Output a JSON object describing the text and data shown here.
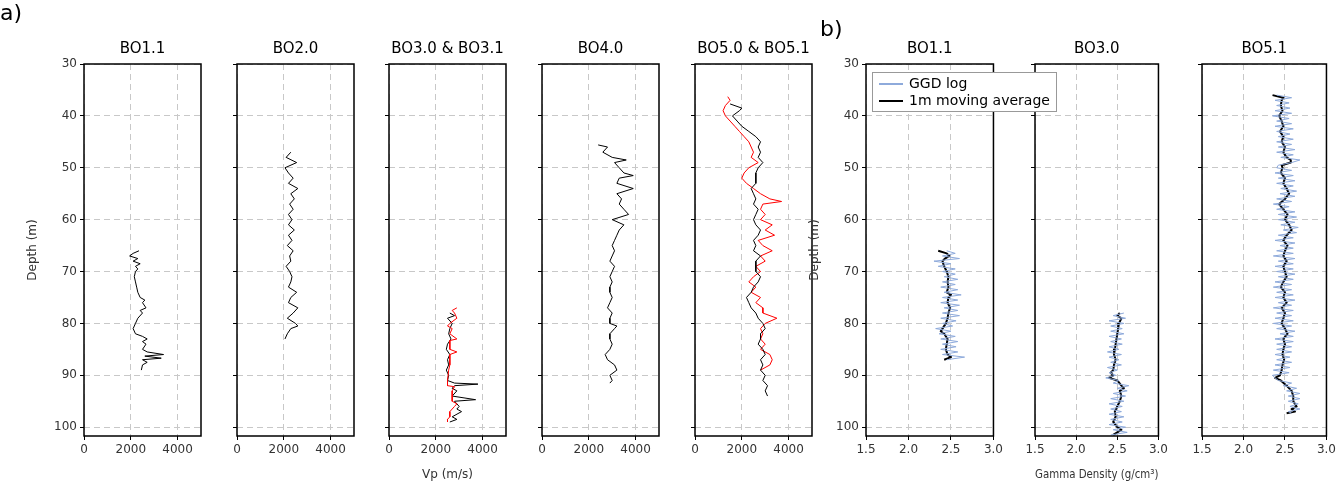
{
  "chart_data": [
    {
      "type": "line",
      "title": "BO1.1",
      "ylabel": "Depth (m)",
      "annotations": [
        "a)"
      ],
      "xlim": [
        0,
        5000
      ],
      "xticks": [
        0,
        2000,
        4000
      ],
      "ylim": [
        101.7,
        30
      ],
      "yticks": [
        30,
        40,
        50,
        60,
        70,
        80,
        90,
        100
      ],
      "grid": true,
      "series": [
        {
          "color": "#000000",
          "x": [
            2350,
            2100,
            1950,
            2300,
            2100,
            2400,
            2200,
            2300,
            2200,
            2150,
            2200,
            2250,
            2300,
            2400,
            2600,
            2500,
            2650,
            2400,
            2500,
            2300,
            2200,
            2100,
            2200,
            2500,
            2700,
            2500,
            2650,
            2500,
            2700,
            3400,
            2600,
            3300,
            2500,
            2700,
            2500,
            2450
          ],
          "values": [
            66,
            66.5,
            67,
            67.5,
            68,
            68.5,
            69,
            69.5,
            70,
            71,
            72,
            73,
            74,
            75,
            75.5,
            76,
            77,
            77.5,
            78,
            79,
            80,
            81,
            82,
            82.5,
            83,
            83.5,
            84,
            85,
            85.5,
            86,
            86.3,
            86.7,
            87,
            87.5,
            88,
            89
          ]
        }
      ]
    },
    {
      "type": "line",
      "title": "BO2.0",
      "tick_labels": "x",
      "xlim": [
        0,
        5000
      ],
      "xticks": [
        0,
        2000,
        4000
      ],
      "ylim": [
        101.7,
        30
      ],
      "yticks": [
        30,
        40,
        50,
        60,
        70,
        80,
        90,
        100
      ],
      "grid": true,
      "series": [
        {
          "color": "#000000",
          "x": [
            2300,
            2100,
            2550,
            2050,
            2200,
            2400,
            2200,
            2600,
            2300,
            2450,
            2250,
            2400,
            2200,
            2350,
            2200,
            2450,
            2200,
            2350,
            2150,
            2400,
            2250,
            2300,
            2100,
            2250,
            2350,
            2300,
            2200,
            2550,
            2300,
            2200,
            2600,
            2400,
            2150,
            2500,
            2600,
            2300,
            2150,
            2050
          ],
          "values": [
            47,
            48,
            49,
            50,
            51,
            52,
            53,
            54,
            55,
            56,
            57,
            58,
            59,
            60,
            61,
            62,
            63,
            64,
            65,
            66,
            67,
            68,
            69,
            70,
            71,
            72,
            73,
            74,
            75,
            76,
            77,
            78,
            79,
            80,
            80.5,
            81,
            82,
            83
          ]
        }
      ]
    },
    {
      "type": "line",
      "title": "BO3.0 & BO3.1",
      "xlabel": "Vp (m/s)",
      "tick_labels": "x",
      "xlim": [
        0,
        5000
      ],
      "xticks": [
        0,
        2000,
        4000
      ],
      "ylim": [
        101.7,
        30
      ],
      "yticks": [
        30,
        40,
        50,
        60,
        70,
        80,
        90,
        100
      ],
      "grid": true,
      "series": [
        {
          "color": "#ff0000",
          "x": [
            2900,
            2700,
            2800,
            2900,
            2600,
            2500,
            2700,
            2600,
            2900,
            2600,
            2600,
            2900,
            2600,
            2600,
            2550,
            2500,
            2500,
            2800,
            2700,
            2700,
            2900,
            2800,
            2600,
            2600,
            2500,
            2500
          ],
          "values": [
            77,
            77.5,
            78,
            79,
            80,
            80.5,
            81,
            82,
            83,
            83.3,
            85,
            85.5,
            86,
            88,
            89,
            91,
            92,
            92.2,
            93,
            95,
            95.5,
            96,
            97,
            98,
            98.5,
            99
          ]
        },
        {
          "color": "#000000",
          "x": [
            2600,
            2800,
            2500,
            2700,
            2600,
            2550,
            2650,
            2500,
            2450,
            2600,
            2500,
            2550,
            2450,
            2550,
            2500,
            2800,
            3800,
            2800,
            2700,
            2900,
            2700,
            3700,
            2800,
            3000,
            2900,
            3100,
            2700,
            2900,
            2600
          ],
          "values": [
            78,
            78.5,
            79,
            80,
            81,
            82,
            83,
            84,
            85,
            86,
            87,
            88,
            89,
            90,
            91,
            91.5,
            91.7,
            92,
            92.5,
            93,
            94,
            94.7,
            95,
            96,
            96.5,
            97,
            98,
            98.5,
            99
          ]
        }
      ]
    },
    {
      "type": "line",
      "title": "BO4.0",
      "tick_labels": "x",
      "xlim": [
        0,
        5000
      ],
      "xticks": [
        0,
        2000,
        4000
      ],
      "ylim": [
        101.7,
        30
      ],
      "yticks": [
        30,
        40,
        50,
        60,
        70,
        80,
        90,
        100
      ],
      "grid": true,
      "series": [
        {
          "color": "#000000",
          "x": [
            2400,
            2800,
            2600,
            3000,
            3600,
            3100,
            3300,
            3500,
            3900,
            3300,
            3200,
            3900,
            3200,
            3400,
            3300,
            3500,
            3700,
            3000,
            3500,
            3300,
            3200,
            3100,
            3000,
            3100,
            3000,
            2900,
            3100,
            3000,
            2900,
            3000,
            2900,
            2900,
            3000,
            2900,
            2800,
            3000,
            2900,
            2900,
            3200,
            3100,
            2900,
            2900,
            3000,
            2900,
            2700,
            2800,
            3100,
            3200,
            2900,
            3000,
            2900
          ],
          "values": [
            45.6,
            46,
            47,
            48,
            48.5,
            49,
            50,
            51,
            51.5,
            52,
            53,
            54,
            55,
            56,
            57,
            58,
            59,
            60,
            61,
            62,
            63,
            64,
            65,
            66,
            67,
            68,
            69,
            70,
            71,
            72,
            73,
            74,
            75,
            76,
            77,
            78,
            79,
            80,
            80.5,
            81,
            82,
            83,
            84,
            85,
            86,
            87,
            88,
            89,
            90,
            91,
            91.5
          ]
        }
      ]
    },
    {
      "type": "line",
      "title": "BO5.0 & BO5.1",
      "tick_labels": "x",
      "xlim": [
        0,
        5000
      ],
      "xticks": [
        0,
        2000,
        4000
      ],
      "ylim": [
        101.7,
        30
      ],
      "yticks": [
        30,
        40,
        50,
        60,
        70,
        80,
        90,
        100
      ],
      "grid": true,
      "series": [
        {
          "color": "#000000",
          "x": [
            1500,
            2000,
            1900,
            1600,
            1800,
            2000,
            2300,
            2600,
            2800,
            2700,
            2800,
            2700,
            2900,
            2700,
            2600,
            2600,
            2400,
            2500,
            2600,
            2500,
            2700,
            2600,
            2500,
            2600,
            2800,
            2700,
            2500,
            2600,
            2500,
            2800,
            2600,
            2600,
            2800,
            2700,
            2500,
            2400,
            2200,
            2300,
            2400,
            2600,
            2700,
            2900,
            3000,
            2800,
            2800,
            2700,
            2900,
            3000,
            2800,
            2900,
            2800,
            3000,
            2900,
            3100,
            3000,
            3100
          ],
          "values": [
            37.7,
            38.5,
            39,
            40,
            41,
            42,
            43,
            44,
            45,
            46,
            47,
            48,
            49,
            50,
            51,
            53,
            54,
            55,
            56,
            57,
            58,
            59,
            60,
            61,
            62,
            63,
            64,
            65,
            66,
            67,
            68,
            70,
            71,
            72,
            73,
            74,
            75,
            76,
            77,
            78,
            79,
            80,
            81,
            82,
            83,
            84,
            85,
            86,
            87,
            88,
            89,
            90,
            91,
            92,
            93,
            94
          ]
        },
        {
          "color": "#ff0000",
          "x": [
            1400,
            1500,
            1300,
            1200,
            1300,
            1500,
            1700,
            1900,
            2100,
            2300,
            2400,
            2500,
            2400,
            2700,
            2300,
            2100,
            2000,
            2200,
            2500,
            2800,
            3200,
            3700,
            2900,
            2800,
            3000,
            2800,
            3300,
            3000,
            3400,
            2700,
            2900,
            3300,
            2800,
            3000,
            2600,
            2800,
            2500,
            2300,
            2600,
            2400,
            2800,
            2600,
            2900,
            2900,
            3500,
            3000,
            2800,
            2900,
            2800,
            3000,
            2800,
            3200,
            3300,
            3200,
            2800
          ],
          "values": [
            36.3,
            37,
            38,
            39,
            40,
            41,
            42,
            43,
            44,
            45,
            46,
            47,
            48,
            49,
            50,
            51,
            52,
            53,
            54,
            55,
            56,
            56.5,
            57,
            58,
            59,
            60,
            61,
            62,
            63,
            64,
            65,
            66,
            67,
            68,
            69,
            70,
            71,
            72,
            73,
            74,
            75,
            76,
            77,
            78,
            79,
            80,
            81,
            82,
            83,
            84,
            85,
            86,
            87,
            88,
            89
          ]
        }
      ]
    },
    {
      "type": "line",
      "title": "BO1.1",
      "ylabel": "Depth (m)",
      "annotations": [
        "b)"
      ],
      "legend": "top",
      "xlim": [
        1.5,
        3.0
      ],
      "xticks": [
        {
          "value": 1.5,
          "label": "1.5"
        },
        {
          "value": 2,
          "label": "2.0"
        },
        {
          "value": 2.5,
          "label": "2.5"
        },
        {
          "value": 3,
          "label": "3.0"
        }
      ],
      "ylim": [
        101.7,
        30
      ],
      "yticks": [
        30,
        40,
        50,
        60,
        70,
        80,
        90,
        100
      ],
      "grid": true,
      "series": [
        {
          "name": "GGD log",
          "color": "#8eaadb",
          "x": [
            2.45,
            2.55,
            2.4,
            2.6,
            2.3,
            2.5,
            2.35,
            2.55,
            2.4,
            2.55,
            2.42,
            2.58,
            2.4,
            2.55,
            2.38,
            2.58,
            2.42,
            2.62,
            2.4,
            2.58,
            2.38,
            2.6,
            2.42,
            2.58,
            2.4,
            2.6,
            2.38,
            2.56,
            2.4,
            2.52,
            2.32,
            2.5,
            2.36,
            2.55,
            2.38,
            2.58,
            2.4,
            2.56,
            2.38,
            2.58,
            2.4,
            2.66,
            2.45
          ],
          "values": [
            66,
            66.5,
            67,
            67.5,
            68,
            68.5,
            69,
            69.5,
            70,
            70.5,
            71,
            71.5,
            72,
            72.5,
            73,
            73.5,
            74,
            74.5,
            75,
            75.5,
            76,
            76.5,
            77,
            77.5,
            78,
            78.5,
            79,
            79.5,
            80,
            80.5,
            81,
            81.5,
            82,
            82.5,
            83,
            83.5,
            84,
            84.5,
            85,
            85.5,
            86,
            86.5,
            87
          ]
        },
        {
          "name": "1m moving average",
          "color": "#000000",
          "x": [
            2.35,
            2.45,
            2.48,
            2.43,
            2.4,
            2.42,
            2.45,
            2.47,
            2.46,
            2.47,
            2.45,
            2.5,
            2.47,
            2.46,
            2.49,
            2.47,
            2.46,
            2.44,
            2.4,
            2.38,
            2.42,
            2.46,
            2.45,
            2.44,
            2.46,
            2.5,
            2.42
          ],
          "values": [
            66,
            66.5,
            67,
            67.5,
            68,
            69,
            70,
            71,
            72,
            73,
            74,
            74.5,
            75,
            76,
            77,
            78,
            79,
            80,
            81,
            81.5,
            82,
            83,
            84,
            85,
            86,
            86.5,
            87
          ]
        }
      ]
    },
    {
      "type": "line",
      "title": "BO3.0",
      "xlabel": "Gamma Density (g/cm³)",
      "tick_labels": "x",
      "xlim": [
        1.5,
        3.0
      ],
      "xticks": [
        {
          "value": 1.5,
          "label": "1.5"
        },
        {
          "value": 2,
          "label": "2.0"
        },
        {
          "value": 2.5,
          "label": "2.5"
        },
        {
          "value": 3,
          "label": "3.0"
        }
      ],
      "ylim": [
        101.7,
        30
      ],
      "yticks": [
        30,
        40,
        50,
        60,
        70,
        80,
        90,
        100
      ],
      "grid": true,
      "series": [
        {
          "color": "#8eaadb",
          "x": [
            2.58,
            2.45,
            2.6,
            2.4,
            2.58,
            2.42,
            2.56,
            2.42,
            2.58,
            2.4,
            2.55,
            2.42,
            2.56,
            2.4,
            2.52,
            2.38,
            2.55,
            2.4,
            2.52,
            2.42,
            2.55,
            2.38,
            2.5,
            2.4,
            2.48,
            2.36,
            2.52,
            2.45,
            2.64,
            2.5,
            2.62,
            2.45,
            2.6,
            2.42,
            2.58,
            2.4,
            2.56,
            2.42,
            2.55,
            2.4,
            2.58,
            2.42,
            2.56,
            2.4,
            2.6,
            2.45,
            2.62,
            2.42
          ],
          "values": [
            78,
            78.5,
            79,
            79.5,
            80,
            80.5,
            81,
            81.5,
            82,
            82.5,
            83,
            83.5,
            84,
            84.5,
            85,
            85.5,
            86,
            86.5,
            87,
            87.5,
            88,
            88.5,
            89,
            89.5,
            90,
            90.5,
            91,
            91.5,
            92,
            92.5,
            93,
            93.5,
            94,
            94.5,
            95,
            95.5,
            96,
            96.5,
            97,
            97.5,
            98,
            98.5,
            99,
            99.5,
            100,
            100.5,
            101,
            101.5
          ]
        },
        {
          "color": "#000000",
          "x": [
            2.53,
            2.5,
            2.55,
            2.52,
            2.51,
            2.5,
            2.49,
            2.48,
            2.47,
            2.46,
            2.48,
            2.46,
            2.45,
            2.42,
            2.45,
            2.4,
            2.5,
            2.55,
            2.58,
            2.53,
            2.55,
            2.53,
            2.5,
            2.47,
            2.48,
            2.45,
            2.5,
            2.55,
            2.5,
            2.45
          ],
          "values": [
            78,
            78.5,
            79,
            80,
            81,
            82,
            83,
            84,
            85,
            86,
            87,
            88,
            89,
            89.5,
            90,
            90.5,
            91,
            92,
            92.5,
            93,
            94,
            95,
            96,
            97,
            98,
            99,
            100,
            100.5,
            101,
            101.5
          ]
        }
      ]
    },
    {
      "type": "line",
      "title": "BO5.1",
      "tick_labels": "x",
      "xlim": [
        1.5,
        3.0
      ],
      "xticks": [
        {
          "value": 1.5,
          "label": "1.5"
        },
        {
          "value": 2,
          "label": "2.0"
        },
        {
          "value": 2.5,
          "label": "2.5"
        },
        {
          "value": 3,
          "label": "3.0"
        }
      ],
      "ylim": [
        101.7,
        30
      ],
      "yticks": [
        30,
        40,
        50,
        60,
        70,
        80,
        90,
        100
      ],
      "grid": true,
      "series": [
        {
          "color": "#8eaadb",
          "x": [
            2.4,
            2.58,
            2.38,
            2.55,
            2.4,
            2.56,
            2.38,
            2.58,
            2.35,
            2.55,
            2.4,
            2.58,
            2.38,
            2.6,
            2.4,
            2.56,
            2.42,
            2.6,
            2.4,
            2.58,
            2.42,
            2.62,
            2.4,
            2.6,
            2.45,
            2.68,
            2.58,
            2.42,
            2.4,
            2.58,
            2.38,
            2.6,
            2.42,
            2.62,
            2.4,
            2.6,
            2.45,
            2.64,
            2.44,
            2.62,
            2.4,
            2.58,
            2.36,
            2.55,
            2.4,
            2.62,
            2.42,
            2.64,
            2.42,
            2.62,
            2.45,
            2.66,
            2.48,
            2.64,
            2.42,
            2.6,
            2.38,
            2.62,
            2.44,
            2.6,
            2.4,
            2.6,
            2.36,
            2.62,
            2.42,
            2.6,
            2.38,
            2.6,
            2.4,
            2.62,
            2.42,
            2.6,
            2.38,
            2.58,
            2.36,
            2.58,
            2.4,
            2.6,
            2.38,
            2.62,
            2.42,
            2.58,
            2.36,
            2.6,
            2.4,
            2.58,
            2.38,
            2.6,
            2.36,
            2.58,
            2.4,
            2.62,
            2.44,
            2.6,
            2.38,
            2.6,
            2.4,
            2.58,
            2.4,
            2.58,
            2.38,
            2.56,
            2.4,
            2.58,
            2.38,
            2.56,
            2.36,
            2.55,
            2.35,
            2.38,
            2.42,
            2.58,
            2.48,
            2.64,
            2.52,
            2.68,
            2.54,
            2.68,
            2.54,
            2.66,
            2.56,
            2.68,
            2.54,
            2.58
          ],
          "values": [
            36,
            36.5,
            37,
            37.5,
            38,
            38.5,
            39,
            39.5,
            40,
            40.5,
            41,
            41.5,
            42,
            42.5,
            43,
            43.5,
            44,
            44.5,
            45,
            45.5,
            46,
            46.5,
            47,
            47.5,
            48,
            48.5,
            49,
            49.5,
            50,
            50.5,
            51,
            51.5,
            52,
            52.5,
            53,
            53.5,
            54,
            54.5,
            55,
            55.5,
            56,
            56.5,
            57,
            57.5,
            58,
            58.5,
            59,
            59.5,
            60,
            60.5,
            61,
            61.5,
            62,
            62.5,
            63,
            63.5,
            64,
            64.5,
            65,
            65.5,
            66,
            66.5,
            67,
            67.5,
            68,
            68.5,
            69,
            69.5,
            70,
            70.5,
            71,
            71.5,
            72,
            72.5,
            73,
            73.5,
            74,
            74.5,
            75,
            75.5,
            76,
            76.5,
            77,
            77.5,
            78,
            78.5,
            79,
            79.5,
            80,
            80.5,
            81,
            81.5,
            82,
            82.5,
            83,
            83.5,
            84,
            84.5,
            85,
            85.5,
            86,
            86.5,
            87,
            87.5,
            88,
            88.5,
            89,
            89.5,
            90,
            90.5,
            91,
            91.5,
            92,
            92.5,
            93,
            93.5,
            94,
            94.5,
            95,
            95.5,
            96,
            96.5,
            97,
            97.3
          ]
        },
        {
          "color": "#000000",
          "x": [
            2.35,
            2.48,
            2.46,
            2.45,
            2.47,
            2.43,
            2.46,
            2.48,
            2.44,
            2.48,
            2.46,
            2.5,
            2.48,
            2.52,
            2.57,
            2.57,
            2.46,
            2.47,
            2.45,
            2.5,
            2.48,
            2.52,
            2.55,
            2.5,
            2.43,
            2.48,
            2.53,
            2.5,
            2.55,
            2.58,
            2.52,
            2.48,
            2.53,
            2.5,
            2.48,
            2.52,
            2.48,
            2.5,
            2.52,
            2.48,
            2.45,
            2.5,
            2.48,
            2.52,
            2.46,
            2.5,
            2.48,
            2.46,
            2.5,
            2.53,
            2.48,
            2.5,
            2.48,
            2.47,
            2.49,
            2.47,
            2.46,
            2.44,
            2.38,
            2.45,
            2.52,
            2.58,
            2.6,
            2.6,
            2.64,
            2.58,
            2.62,
            2.52
          ],
          "values": [
            36,
            36.5,
            37,
            38,
            39,
            40,
            41,
            42,
            43,
            44,
            45,
            46,
            47,
            48,
            48.5,
            49,
            49.5,
            50,
            51,
            52,
            53,
            54,
            55,
            56,
            57,
            58,
            59,
            60,
            61,
            62,
            63,
            64,
            65,
            66,
            67,
            68,
            69,
            70,
            71,
            72,
            73,
            74,
            75,
            76,
            77,
            78,
            79,
            80,
            81,
            82,
            83,
            84,
            85,
            86,
            87,
            88,
            89,
            90,
            90.5,
            91,
            92,
            93,
            94,
            95,
            96,
            96.5,
            97,
            97.3
          ]
        }
      ]
    }
  ]
}
